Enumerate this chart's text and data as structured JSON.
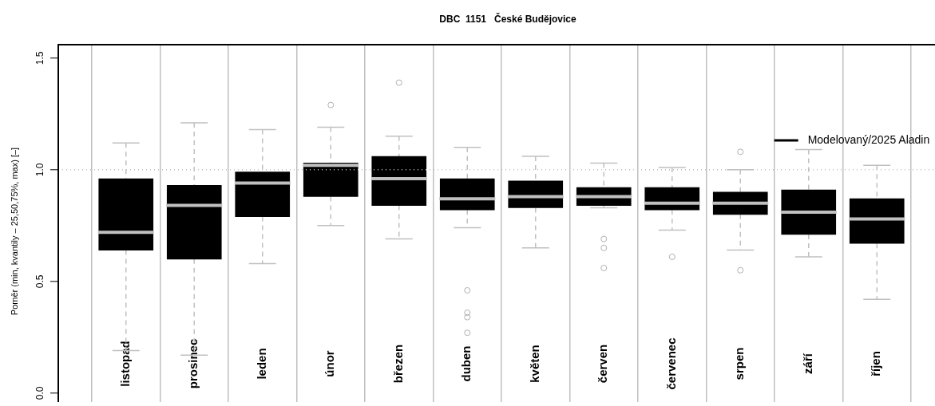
{
  "chart_data": {
    "type": "box",
    "title": "DBC  1151   České Budějovice",
    "ylabel": "Poměr (min, kvantily – 25,50,75%, max) [–]",
    "categories": [
      "listopad",
      "prosinec",
      "leden",
      "únor",
      "březen",
      "duben",
      "květen",
      "červen",
      "červenec",
      "srpen",
      "září",
      "říjen"
    ],
    "series": [
      {
        "name": "Modelovaný/2025 Aladin",
        "color": "#000000",
        "boxes": [
          {
            "low": 0.19,
            "q1": 0.64,
            "median": 0.72,
            "q3": 0.96,
            "high": 1.12
          },
          {
            "low": 0.17,
            "q1": 0.6,
            "median": 0.84,
            "q3": 0.93,
            "high": 1.21
          },
          {
            "low": 0.58,
            "q1": 0.79,
            "median": 0.94,
            "q3": 0.99,
            "high": 1.18
          },
          {
            "low": 0.75,
            "q1": 0.88,
            "median": 1.02,
            "q3": 1.03,
            "high": 1.19,
            "outliers": [
              1.29
            ]
          },
          {
            "low": 0.69,
            "q1": 0.84,
            "median": 0.96,
            "q3": 1.06,
            "high": 1.15,
            "outliers": [
              1.39
            ]
          },
          {
            "low": 0.74,
            "q1": 0.82,
            "median": 0.87,
            "q3": 0.96,
            "high": 1.1,
            "outliers": [
              0.46,
              0.36,
              0.34,
              0.27
            ]
          },
          {
            "low": 0.65,
            "q1": 0.83,
            "median": 0.88,
            "q3": 0.95,
            "high": 1.06
          },
          {
            "low": 0.83,
            "q1": 0.84,
            "median": 0.88,
            "q3": 0.92,
            "high": 1.03,
            "outliers": [
              0.69,
              0.65,
              0.56
            ]
          },
          {
            "low": 0.73,
            "q1": 0.82,
            "median": 0.85,
            "q3": 0.92,
            "high": 1.01,
            "outliers": [
              0.61
            ]
          },
          {
            "low": 0.64,
            "q1": 0.8,
            "median": 0.85,
            "q3": 0.9,
            "high": 1.0,
            "outliers": [
              1.08,
              0.55
            ]
          },
          {
            "low": 0.61,
            "q1": 0.71,
            "median": 0.81,
            "q3": 0.91,
            "high": 1.09
          },
          {
            "low": 0.42,
            "q1": 0.67,
            "median": 0.78,
            "q3": 0.87,
            "high": 1.02
          }
        ]
      }
    ],
    "ylim": [
      -0.04,
      1.56
    ],
    "yticks": [
      {
        "value": 0,
        "label": "0.0"
      },
      0.5,
      {
        "value": 1,
        "label": "1.0"
      },
      1.5
    ],
    "ref_lines": [
      {
        "axis": "y",
        "value": 1,
        "color": "#c0c0c0",
        "line_style": "dotted"
      }
    ],
    "grid": "x",
    "legend": "top right"
  }
}
